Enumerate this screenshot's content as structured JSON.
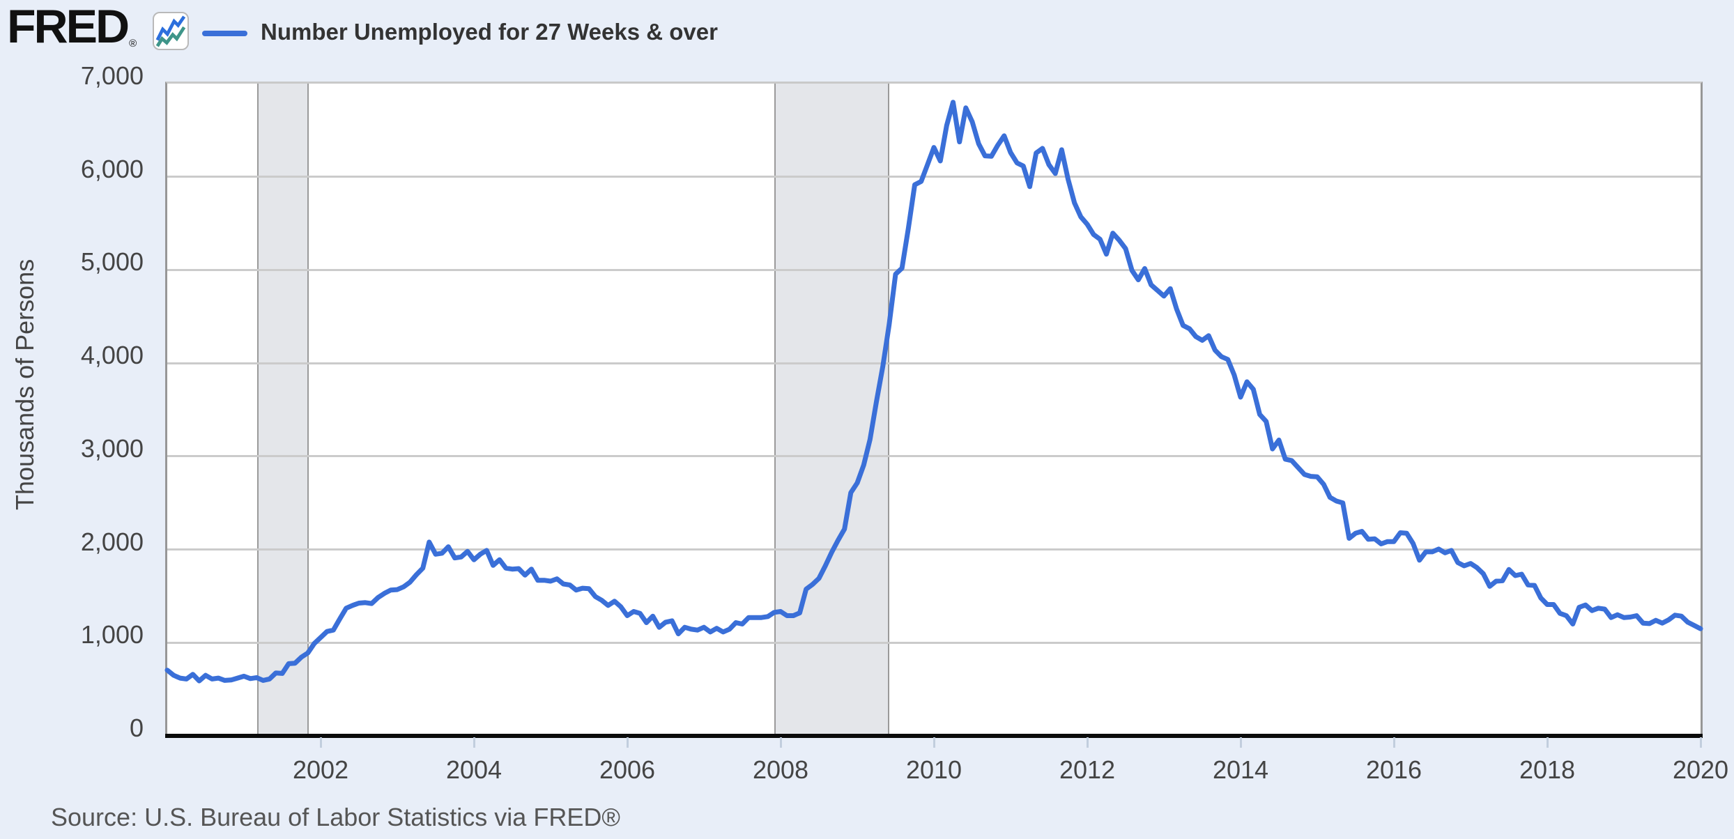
{
  "brand": {
    "logo_text": "FRED",
    "registered": "®"
  },
  "legend": {
    "swatch_color": "#3a6fd8",
    "label": "Number Unemployed for 27 Weeks & over"
  },
  "y_axis": {
    "title": "Thousands of Persons",
    "ticks": [
      "7,000",
      "6,000",
      "5,000",
      "4,000",
      "3,000",
      "2,000",
      "1,000",
      "0"
    ]
  },
  "x_axis": {
    "ticks": [
      "2002",
      "2004",
      "2006",
      "2008",
      "2010",
      "2012",
      "2014",
      "2016",
      "2018",
      "2020"
    ]
  },
  "source": {
    "text": "Source: U.S. Bureau of Labor Statistics via FRED®"
  },
  "colors": {
    "background": "#e8eef8",
    "plot_background": "#ffffff",
    "gridline": "#cbcbcb",
    "plot_border_side": "#979797",
    "plot_border_top": "#c9c9c9",
    "axis_line": "#0b0b0b",
    "recession_band_fill": "#e4e6ea",
    "recession_band_border": "#9a9a9a",
    "tick_mark": "#c2cede",
    "series_line": "#3a6fd8",
    "logo_icon_blue": "#2c6fdd",
    "logo_icon_teal": "#3e9589",
    "text_legend": "#333333",
    "text_axis": "#444444",
    "text_source": "#555555"
  },
  "chart_data": {
    "type": "line",
    "title": "Number Unemployed for 27 Weeks & over",
    "xlabel": "",
    "ylabel": "Thousands of Persons",
    "ylim": [
      0,
      7000
    ],
    "xlim": [
      2000,
      2020
    ],
    "y_tick_interval": 1000,
    "x_tick_interval_years": 2,
    "grid": true,
    "legend_position": "top-left",
    "line_color": "#3a6fd8",
    "recession_bands": [
      {
        "start": 2001.17,
        "end": 2001.85
      },
      {
        "start": 2007.92,
        "end": 2009.42
      }
    ],
    "series": [
      {
        "name": "Number Unemployed for 27 Weeks & over",
        "units": "Thousands of Persons",
        "frequency": "monthly",
        "start": "2000-01",
        "end": "2020-01",
        "values": [
          705,
          650,
          620,
          610,
          660,
          590,
          650,
          610,
          620,
          595,
          600,
          620,
          640,
          615,
          625,
          595,
          610,
          675,
          670,
          775,
          780,
          845,
          890,
          990,
          1055,
          1120,
          1135,
          1255,
          1370,
          1400,
          1425,
          1430,
          1420,
          1485,
          1530,
          1565,
          1570,
          1600,
          1650,
          1730,
          1800,
          2080,
          1950,
          1960,
          2030,
          1910,
          1920,
          1980,
          1890,
          1950,
          1990,
          1830,
          1890,
          1800,
          1790,
          1795,
          1725,
          1790,
          1670,
          1670,
          1660,
          1685,
          1630,
          1620,
          1565,
          1585,
          1580,
          1495,
          1455,
          1400,
          1445,
          1385,
          1290,
          1335,
          1315,
          1215,
          1285,
          1165,
          1220,
          1235,
          1095,
          1165,
          1145,
          1135,
          1165,
          1115,
          1155,
          1115,
          1145,
          1215,
          1200,
          1270,
          1270,
          1270,
          1280,
          1325,
          1335,
          1290,
          1290,
          1320,
          1575,
          1625,
          1690,
          1825,
          1970,
          2100,
          2220,
          2610,
          2715,
          2905,
          3180,
          3585,
          3965,
          4415,
          4955,
          5020,
          5445,
          5915,
          5950,
          6130,
          6315,
          6170,
          6550,
          6800,
          6375,
          6740,
          6590,
          6355,
          6225,
          6220,
          6340,
          6440,
          6260,
          6150,
          6115,
          5895,
          6255,
          6305,
          6130,
          6035,
          6290,
          5975,
          5720,
          5570,
          5490,
          5380,
          5330,
          5170,
          5395,
          5320,
          5230,
          4995,
          4895,
          5015,
          4840,
          4780,
          4720,
          4800,
          4580,
          4405,
          4370,
          4285,
          4245,
          4295,
          4140,
          4070,
          4040,
          3875,
          3635,
          3800,
          3720,
          3450,
          3375,
          3080,
          3175,
          2970,
          2955,
          2880,
          2805,
          2785,
          2780,
          2700,
          2560,
          2520,
          2500,
          2120,
          2175,
          2195,
          2110,
          2115,
          2060,
          2085,
          2085,
          2180,
          2175,
          2065,
          1885,
          1975,
          1975,
          2005,
          1965,
          1990,
          1860,
          1825,
          1850,
          1805,
          1740,
          1605,
          1660,
          1665,
          1785,
          1720,
          1735,
          1620,
          1615,
          1480,
          1410,
          1410,
          1315,
          1290,
          1200,
          1380,
          1405,
          1345,
          1370,
          1360,
          1270,
          1300,
          1270,
          1275,
          1290,
          1210,
          1205,
          1240,
          1210,
          1245,
          1295,
          1285,
          1220,
          1185,
          1150
        ]
      }
    ]
  }
}
